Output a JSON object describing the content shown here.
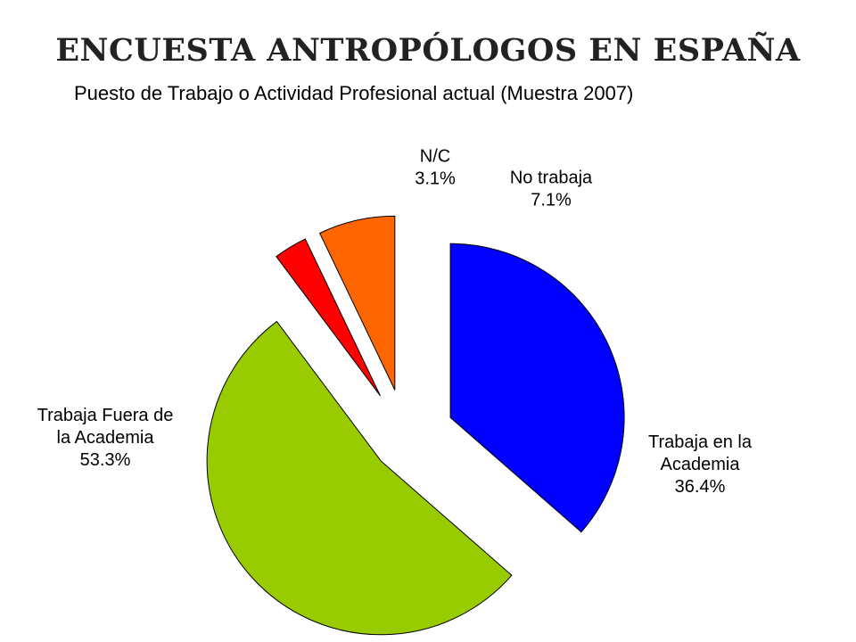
{
  "slide": {
    "title": "ENCUESTA ANTROPÓLOGOS EN ESPAÑA"
  },
  "chart_data": {
    "type": "pie",
    "title": "Puesto de Trabajo o Actividad Profesional actual (Muestra 2007)",
    "start_angle_deg": 0,
    "direction": "clockwise",
    "exploded": true,
    "slices": [
      {
        "label": [
          "Trabaja en la",
          "Academia"
        ],
        "value": 36.4,
        "value_label": "36.4%",
        "color": "#0000ff"
      },
      {
        "label": [
          "Trabaja Fuera de",
          "la Academia"
        ],
        "value": 53.3,
        "value_label": "53.3%",
        "color": "#99cc00"
      },
      {
        "label": [
          "N/C"
        ],
        "value": 3.1,
        "value_label": "3.1%",
        "color": "#ff0000"
      },
      {
        "label": [
          "No trabaja"
        ],
        "value": 7.1,
        "value_label": "7.1%",
        "color": "#ff6600"
      }
    ]
  }
}
